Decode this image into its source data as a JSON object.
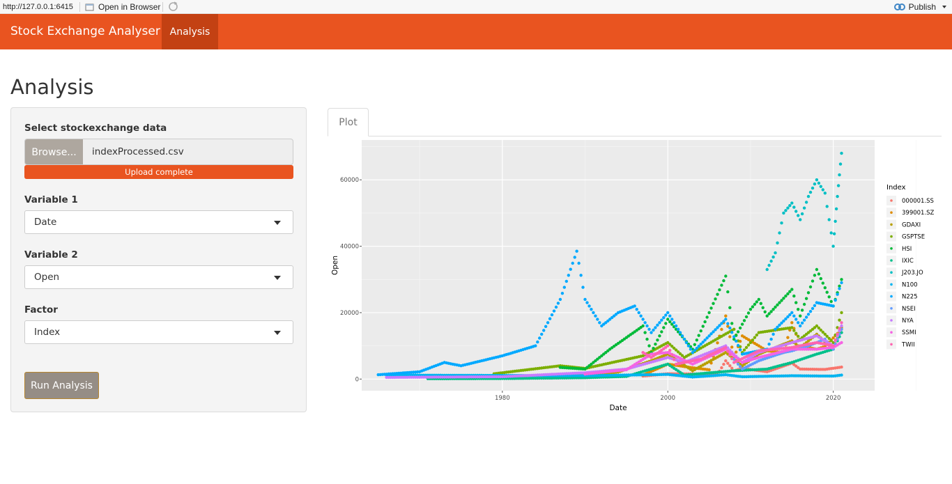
{
  "topbar": {
    "url": "http://127.0.0.1:6415",
    "open_in_browser": "Open in Browser",
    "publish": "Publish"
  },
  "navbar": {
    "brand": "Stock Exchange Analyser",
    "tabs": [
      {
        "label": "Analysis",
        "active": true
      }
    ]
  },
  "page": {
    "title": "Analysis"
  },
  "sidebar": {
    "file_input": {
      "label": "Select stockexchange data",
      "button_label": "Browse...",
      "file_name": "indexProcessed.csv",
      "progress_text": "Upload complete"
    },
    "variable1": {
      "label": "Variable 1",
      "selected": "Date"
    },
    "variable2": {
      "label": "Variable 2",
      "selected": "Open"
    },
    "factor": {
      "label": "Factor",
      "selected": "Index"
    },
    "run_button": "Run Analysis"
  },
  "main": {
    "tabs": [
      {
        "label": "Plot",
        "active": true
      }
    ]
  },
  "colors": {
    "accent": "#e95420",
    "accent_dark": "#c34113",
    "panel_bg": "#f4f4f4",
    "plot_bg": "#ebebeb"
  },
  "chart_data": {
    "type": "scatter",
    "xlabel": "Date",
    "ylabel": "Open",
    "xlim": [
      1963,
      2025
    ],
    "ylim": [
      -3500,
      72000
    ],
    "x_ticks": [
      1980,
      2000,
      2020
    ],
    "y_ticks": [
      0,
      20000,
      40000,
      60000
    ],
    "y_tick_labels": [
      "0",
      "20000",
      "40000",
      "60000"
    ],
    "grid": true,
    "legend": {
      "title": "Index",
      "position": "right"
    },
    "series": [
      {
        "name": "000001.SS",
        "color": "#f8766d",
        "points": [
          [
            1997,
            900
          ],
          [
            2000,
            1600
          ],
          [
            2004,
            1500
          ],
          [
            2006,
            1300
          ],
          [
            2007,
            5500
          ],
          [
            2008,
            2500
          ],
          [
            2009,
            3200
          ],
          [
            2012,
            2200
          ],
          [
            2015,
            4800
          ],
          [
            2016,
            3000
          ],
          [
            2019,
            2900
          ],
          [
            2021,
            3600
          ]
        ]
      },
      {
        "name": "399001.SZ",
        "color": "#de8c00",
        "points": [
          [
            1997,
            1200
          ],
          [
            2000,
            4500
          ],
          [
            2003,
            3400
          ],
          [
            2005,
            2800
          ],
          [
            2007,
            19000
          ],
          [
            2008,
            6500
          ],
          [
            2009,
            13000
          ],
          [
            2012,
            8500
          ],
          [
            2014,
            8000
          ],
          [
            2015,
            17000
          ],
          [
            2016,
            10000
          ],
          [
            2018,
            9000
          ],
          [
            2019,
            9800
          ],
          [
            2021,
            15000
          ]
        ]
      },
      {
        "name": "GDAXI",
        "color": "#b79f00",
        "points": [
          [
            1988,
            1000
          ],
          [
            1992,
            1600
          ],
          [
            1994,
            2100
          ],
          [
            1998,
            5500
          ],
          [
            2000,
            7500
          ],
          [
            2003,
            2500
          ],
          [
            2007,
            8000
          ],
          [
            2009,
            4000
          ],
          [
            2011,
            7500
          ],
          [
            2015,
            11500
          ],
          [
            2016,
            9500
          ],
          [
            2018,
            13500
          ],
          [
            2020,
            9000
          ],
          [
            2021,
            15500
          ]
        ]
      },
      {
        "name": "GSPTSE",
        "color": "#7cae00",
        "points": [
          [
            1979,
            1600
          ],
          [
            1981,
            2200
          ],
          [
            1987,
            4000
          ],
          [
            1990,
            3200
          ],
          [
            1997,
            7000
          ],
          [
            2000,
            11000
          ],
          [
            2002,
            6500
          ],
          [
            2008,
            15000
          ],
          [
            2009,
            8000
          ],
          [
            2011,
            14000
          ],
          [
            2015,
            15500
          ],
          [
            2016,
            12000
          ],
          [
            2018,
            16000
          ],
          [
            2020,
            11000
          ],
          [
            2021,
            20000
          ]
        ]
      },
      {
        "name": "HSI",
        "color": "#00ba38",
        "points": [
          [
            1987,
            3500
          ],
          [
            1990,
            3000
          ],
          [
            1993,
            9000
          ],
          [
            1997,
            16000
          ],
          [
            1998,
            8000
          ],
          [
            2000,
            18000
          ],
          [
            2003,
            9000
          ],
          [
            2007,
            31000
          ],
          [
            2008,
            12000
          ],
          [
            2010,
            21000
          ],
          [
            2011,
            24000
          ],
          [
            2012,
            19000
          ],
          [
            2015,
            27000
          ],
          [
            2016,
            19000
          ],
          [
            2018,
            33000
          ],
          [
            2020,
            22000
          ],
          [
            2021,
            30000
          ]
        ]
      },
      {
        "name": "IXIC",
        "color": "#00c08b",
        "points": [
          [
            1971,
            100
          ],
          [
            1980,
            160
          ],
          [
            1990,
            400
          ],
          [
            1995,
            800
          ],
          [
            2000,
            4500
          ],
          [
            2002,
            1200
          ],
          [
            2008,
            2500
          ],
          [
            2012,
            3000
          ],
          [
            2015,
            5000
          ],
          [
            2018,
            7500
          ],
          [
            2020,
            9000
          ],
          [
            2021,
            14000
          ]
        ]
      },
      {
        "name": "J203.JO",
        "color": "#00bfc4",
        "points": [
          [
            2012,
            33000
          ],
          [
            2013,
            38000
          ],
          [
            2014,
            50000
          ],
          [
            2015,
            53000
          ],
          [
            2016,
            48000
          ],
          [
            2017,
            55000
          ],
          [
            2018,
            60000
          ],
          [
            2019,
            56000
          ],
          [
            2020,
            40000
          ],
          [
            2020.5,
            55000
          ],
          [
            2021,
            68000
          ]
        ]
      },
      {
        "name": "N100",
        "color": "#00b4f0",
        "points": [
          [
            1966,
            1200
          ],
          [
            1990,
            1000
          ],
          [
            2000,
            1400
          ],
          [
            2003,
            600
          ],
          [
            2007,
            1300
          ],
          [
            2009,
            700
          ],
          [
            2015,
            1000
          ],
          [
            2020,
            900
          ],
          [
            2021,
            1200
          ]
        ]
      },
      {
        "name": "N225",
        "color": "#00a9ff",
        "points": [
          [
            1965,
            1300
          ],
          [
            1970,
            2200
          ],
          [
            1973,
            5000
          ],
          [
            1975,
            4000
          ],
          [
            1980,
            7000
          ],
          [
            1984,
            10000
          ],
          [
            1987,
            24000
          ],
          [
            1989,
            38500
          ],
          [
            1990,
            24000
          ],
          [
            1992,
            16000
          ],
          [
            1994,
            20000
          ],
          [
            1996,
            22000
          ],
          [
            1998,
            14000
          ],
          [
            2000,
            20000
          ],
          [
            2003,
            8000
          ],
          [
            2007,
            18000
          ],
          [
            2009,
            7500
          ],
          [
            2012,
            9000
          ],
          [
            2013,
            15000
          ],
          [
            2015,
            20000
          ],
          [
            2016,
            16000
          ],
          [
            2018,
            23000
          ],
          [
            2020,
            22000
          ],
          [
            2021,
            29000
          ]
        ]
      },
      {
        "name": "NSEI",
        "color": "#619cff",
        "points": [
          [
            2008,
            6000
          ],
          [
            2009,
            3000
          ],
          [
            2011,
            5500
          ],
          [
            2014,
            8000
          ],
          [
            2015,
            8500
          ],
          [
            2017,
            10000
          ],
          [
            2019,
            12000
          ],
          [
            2020,
            9000
          ],
          [
            2021,
            15000
          ]
        ]
      },
      {
        "name": "NYA",
        "color": "#c77cff",
        "points": [
          [
            1966,
            500
          ],
          [
            1980,
            700
          ],
          [
            1990,
            1900
          ],
          [
            1995,
            3000
          ],
          [
            2000,
            6500
          ],
          [
            2002,
            5000
          ],
          [
            2007,
            10000
          ],
          [
            2009,
            5000
          ],
          [
            2011,
            8000
          ],
          [
            2015,
            11000
          ],
          [
            2018,
            13000
          ],
          [
            2020,
            10000
          ],
          [
            2021,
            16000
          ]
        ]
      },
      {
        "name": "SSMI",
        "color": "#f564e3",
        "points": [
          [
            1990,
            1500
          ],
          [
            1995,
            2800
          ],
          [
            1998,
            7500
          ],
          [
            2000,
            8000
          ],
          [
            2003,
            4500
          ],
          [
            2007,
            9000
          ],
          [
            2009,
            5000
          ],
          [
            2011,
            6500
          ],
          [
            2015,
            9000
          ],
          [
            2018,
            9000
          ],
          [
            2020,
            9500
          ],
          [
            2021,
            11000
          ]
        ]
      },
      {
        "name": "TWII",
        "color": "#ff64b0",
        "points": [
          [
            1997,
            8000
          ],
          [
            1998,
            6500
          ],
          [
            2000,
            10000
          ],
          [
            2001,
            4500
          ],
          [
            2004,
            6000
          ],
          [
            2007,
            9500
          ],
          [
            2008,
            5000
          ],
          [
            2011,
            8500
          ],
          [
            2015,
            9500
          ],
          [
            2018,
            11000
          ],
          [
            2020,
            10000
          ],
          [
            2021,
            17000
          ]
        ]
      }
    ]
  }
}
